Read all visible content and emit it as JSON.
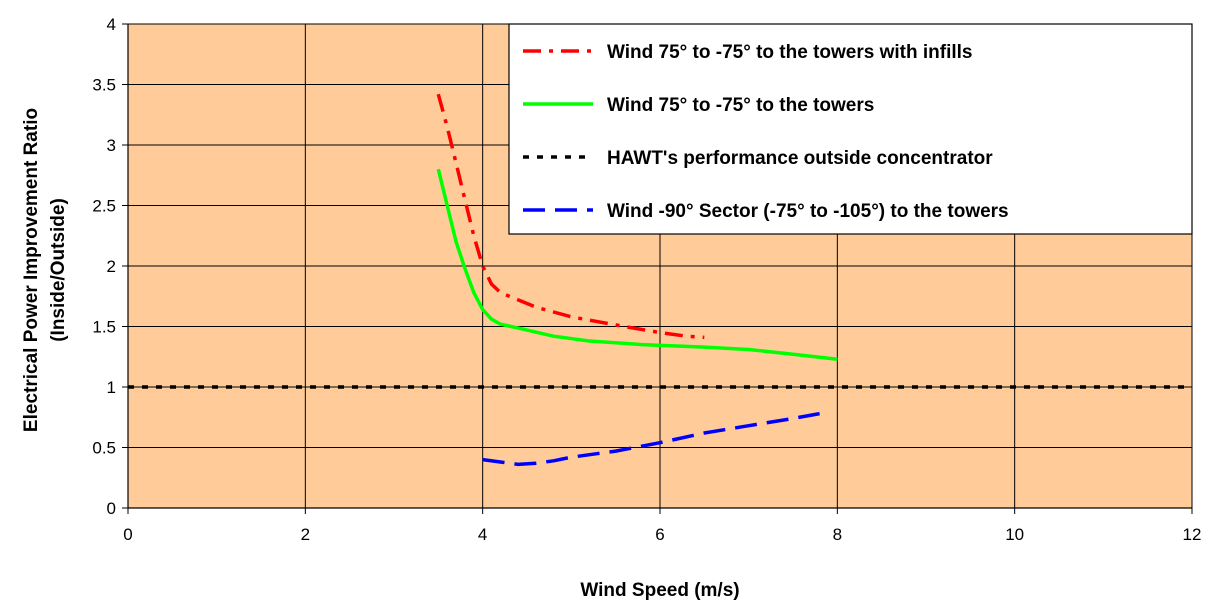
{
  "chart_data": {
    "type": "line",
    "xlabel": "Wind Speed (m/s)",
    "ylabel": [
      "Electrical Power Improvement Ratio",
      "(Inside/Outside)"
    ],
    "xlim": [
      0,
      12
    ],
    "ylim": [
      0,
      4
    ],
    "x_ticks": [
      "0",
      "2",
      "4",
      "6",
      "8",
      "10",
      "12"
    ],
    "y_ticks": [
      "0",
      "0.5",
      "1",
      "1.5",
      "2",
      "2.5",
      "3",
      "3.5",
      "4"
    ],
    "grid": true,
    "legend_position": "top-right",
    "plot_background": "#FFCC99",
    "series": [
      {
        "name": "Wind 75° to -75° to the towers with infills",
        "color": "#FF0000",
        "style": "dash-dot",
        "x": [
          3.5,
          3.6,
          3.7,
          3.8,
          3.9,
          4.0,
          4.1,
          4.2,
          4.4,
          4.6,
          4.8,
          5.0,
          5.3,
          5.6,
          6.0,
          6.3,
          6.5
        ],
        "y": [
          3.42,
          3.15,
          2.85,
          2.55,
          2.25,
          2.0,
          1.85,
          1.78,
          1.72,
          1.66,
          1.62,
          1.58,
          1.54,
          1.5,
          1.45,
          1.42,
          1.41
        ]
      },
      {
        "name": "Wind 75° to -75° to the towers",
        "color": "#00FF00",
        "style": "solid",
        "x": [
          3.5,
          3.6,
          3.7,
          3.8,
          3.9,
          4.0,
          4.1,
          4.2,
          4.5,
          4.8,
          5.2,
          5.8,
          6.5,
          7.0,
          7.5,
          8.0
        ],
        "y": [
          2.8,
          2.5,
          2.2,
          1.98,
          1.78,
          1.64,
          1.56,
          1.52,
          1.47,
          1.42,
          1.38,
          1.35,
          1.33,
          1.31,
          1.27,
          1.23
        ]
      },
      {
        "name": "HAWT's performance outside concentrator",
        "color": "#000000",
        "style": "dotted",
        "x": [
          0,
          12
        ],
        "y": [
          1,
          1
        ]
      },
      {
        "name": "Wind -90° Sector (-75° to -105°) to the towers",
        "color": "#0000FF",
        "style": "dashed",
        "x": [
          4.0,
          4.2,
          4.4,
          4.6,
          4.8,
          5.0,
          5.5,
          6.0,
          6.5,
          7.0,
          7.5,
          7.8
        ],
        "y": [
          0.4,
          0.38,
          0.36,
          0.37,
          0.39,
          0.42,
          0.47,
          0.54,
          0.62,
          0.68,
          0.74,
          0.78
        ]
      }
    ]
  }
}
